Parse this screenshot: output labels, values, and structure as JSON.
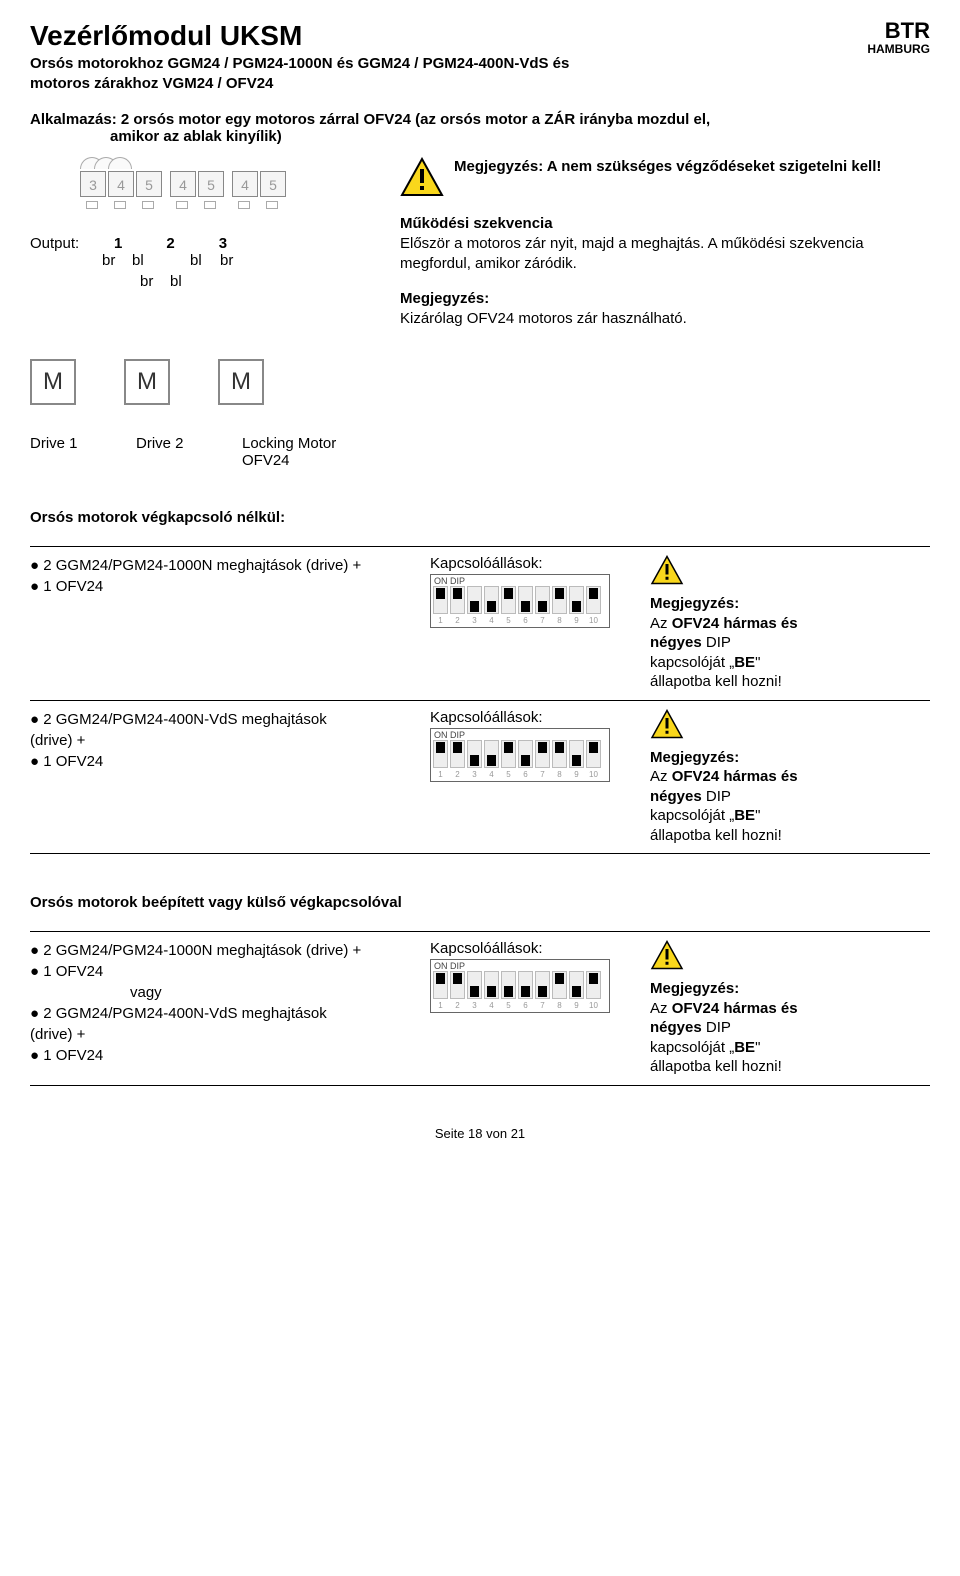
{
  "header": {
    "title": "Vezérlőmodul UKSM",
    "subtitle_line1": "Orsós motorokhoz GGM24 / PGM24-1000N és GGM24 / PGM24-400N-VdS és",
    "subtitle_line2": "motoros zárakhoz VGM24 / OFV24",
    "logo_top": "BTR",
    "logo_bottom": "HAMBURG"
  },
  "application": {
    "line1": "Alkalmazás: 2 orsós motor egy motoros zárral OFV24 (az orsós motor a ZÁR irányba mozdul el,",
    "line2": "amikor az ablak kinyílik)"
  },
  "note_insulate": "Megjegyzés: A nem szükséges végződéseket szigetelni kell!",
  "sequence": {
    "title": "Működési szekvencia",
    "text": "Először a motoros zár nyit, majd a meghajtás. A működési szekvencia megfordul, amikor záródik."
  },
  "note_exclusive": {
    "label": "Megjegyzés:",
    "text": "Kizárólag OFV24 motoros zár használható."
  },
  "terminals": [
    "3",
    "4",
    "5",
    "4",
    "5",
    "4",
    "5"
  ],
  "output": {
    "label": "Output:",
    "n1": "1",
    "n2": "2",
    "n3": "3",
    "br": "br",
    "bl": "bl"
  },
  "motor_label": "M",
  "drive_labels": {
    "d1": "Drive 1",
    "d2": "Drive 2",
    "lock1": "Locking Motor",
    "lock2": "OFV24"
  },
  "section1_head": "Orsós motorok végkapcsoló nélkül:",
  "section2_head": "Orsós motorok beépített vagy külső végkapcsolóval",
  "config1_left1": "● 2 GGM24/PGM24-1000N meghajtások (drive) +",
  "config1_left2": "● 1 OFV24",
  "config2_left1": "● 2 GGM24/PGM24-400N-VdS meghajtások",
  "config2_left2": "(drive) +",
  "config2_left3": "● 1 OFV24",
  "config3_left1": "● 2 GGM24/PGM24-1000N meghajtások (drive) +",
  "config3_left2": "● 1 OFV24",
  "config3_vagy": "vagy",
  "config3_left3": "● 2 GGM24/PGM24-400N-VdS meghajtások",
  "config3_left4": "(drive) +",
  "config3_left5": "● 1 OFV24",
  "switch_label": "Kapcsolóállások:",
  "dip_on": "ON DIP",
  "dip_positions_1": [
    "up",
    "up",
    "down",
    "down",
    "up",
    "down",
    "down",
    "up",
    "down",
    "up"
  ],
  "dip_positions_2": [
    "up",
    "up",
    "down",
    "down",
    "up",
    "down",
    "up",
    "up",
    "down",
    "up"
  ],
  "dip_positions_3": [
    "up",
    "up",
    "down",
    "down",
    "down",
    "down",
    "down",
    "up",
    "down",
    "up"
  ],
  "dip_numbers": [
    "1",
    "2",
    "3",
    "4",
    "5",
    "6",
    "7",
    "8",
    "9",
    "10"
  ],
  "note_right": {
    "label": "Megjegyzés:",
    "l1a": "Az ",
    "l1b": "OFV24 hármas és",
    "l2a": "négyes",
    "l2b": " DIP",
    "l3a": "kapcsolóját „",
    "l3b": "BE",
    "l3c": "\"",
    "l4": "állapotba kell hozni!"
  },
  "footer": "Seite 18 von 21",
  "colors": {
    "text": "#000000",
    "bg": "#ffffff",
    "gray_border": "#888888",
    "light_gray": "#999999",
    "warn_yellow": "#f9d71c",
    "warn_border": "#000000"
  }
}
